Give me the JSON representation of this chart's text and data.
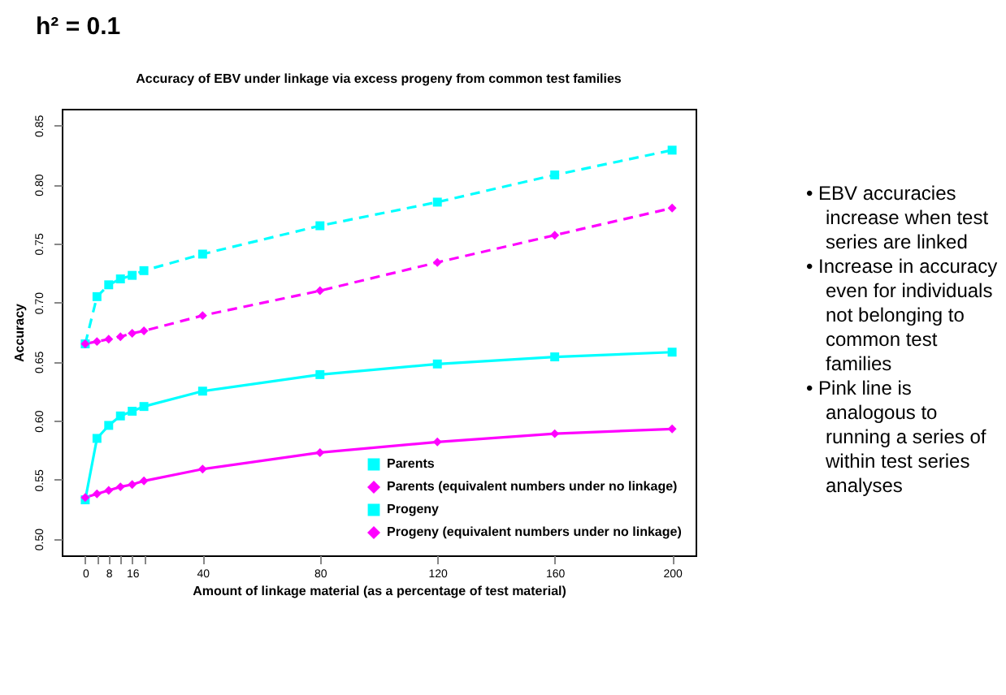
{
  "chart_data": {
    "type": "line",
    "title": "h² = 0.1",
    "subtitle": "Accuracy of EBV under linkage via excess progeny from common test families",
    "xlabel": "Amount of linkage material (as a percentage of test material)",
    "ylabel": "Accuracy",
    "x": [
      0,
      4,
      8,
      12,
      16,
      20,
      40,
      80,
      120,
      160,
      200
    ],
    "series": [
      {
        "name": "Parents",
        "color": "#00ffff",
        "line_style": "dashed",
        "marker": "square",
        "values": [
          0.665,
          0.705,
          0.715,
          0.72,
          0.723,
          0.727,
          0.741,
          0.765,
          0.785,
          0.808,
          0.829
        ]
      },
      {
        "name": "Parents (equivalent numbers under no linkage)",
        "color": "#ff00ff",
        "line_style": "dashed",
        "marker": "diamond",
        "values": [
          0.665,
          0.667,
          0.669,
          0.671,
          0.674,
          0.676,
          0.689,
          0.71,
          0.734,
          0.757,
          0.78
        ]
      },
      {
        "name": "Progeny",
        "color": "#00ffff",
        "line_style": "solid",
        "marker": "square",
        "values": [
          0.533,
          0.585,
          0.596,
          0.604,
          0.608,
          0.612,
          0.625,
          0.639,
          0.648,
          0.654,
          0.658
        ]
      },
      {
        "name": "Progeny (equivalent numbers under no linkage)",
        "color": "#ff00ff",
        "line_style": "solid",
        "marker": "diamond",
        "values": [
          0.535,
          0.538,
          0.541,
          0.544,
          0.546,
          0.549,
          0.559,
          0.573,
          0.582,
          0.589,
          0.593
        ]
      }
    ],
    "xlim": [
      -8,
      208
    ],
    "ylim": [
      0.486,
      0.864
    ],
    "xticks": [
      0,
      {
        "value": 4,
        "label": null
      },
      8,
      {
        "value": 12,
        "label": null
      },
      16,
      {
        "value": 20,
        "label": null
      },
      40,
      80,
      120,
      160,
      200
    ],
    "yticks": [
      {
        "value": 0.5,
        "label": "0.50"
      },
      {
        "value": 0.55,
        "label": "0.55"
      },
      {
        "value": 0.6,
        "label": "0.60"
      },
      {
        "value": 0.65,
        "label": "0.65"
      },
      {
        "value": 0.7,
        "label": "0.70"
      },
      {
        "value": 0.75,
        "label": "0.75"
      },
      {
        "value": 0.8,
        "label": "0.80"
      },
      {
        "value": 0.85,
        "label": "0.85"
      }
    ],
    "grid": false,
    "legend": "bottom right",
    "annotations": [
      "• EBV accuracies increase when test series are linked",
      "• Increase in accuracy even for individuals not belonging to common test families",
      "• Pink line is analogous to running a series of within test series analyses"
    ]
  }
}
